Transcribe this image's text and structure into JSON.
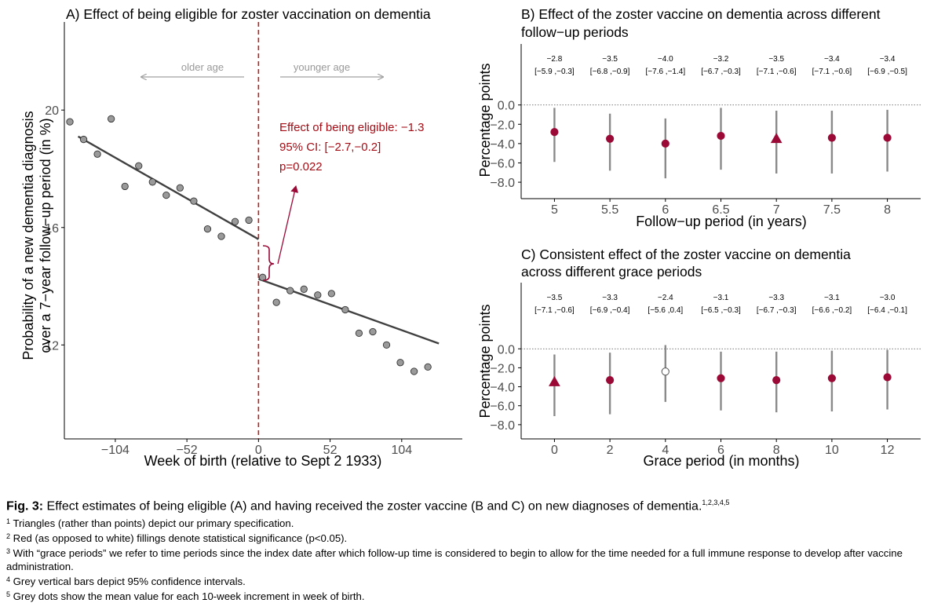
{
  "colors": {
    "red": "#9b0a36",
    "annot": "#a30d16",
    "grey_bar": "#8a8a8a",
    "line": "#404040",
    "dot_fill": "#9a9a9a",
    "guide": "#a0a0a0",
    "cutoff": "#b22222"
  },
  "panel_a": {
    "title": "A) Effect of being eligible for zoster vaccination on dementia",
    "xlabel": "Week of birth (relative to Sept 2 1933)",
    "ylabel_line1": "Probability of a new dementia diagnosis",
    "ylabel_line2": "over a 7−year follow−up period (in %)",
    "older_label": "older age",
    "younger_label": "younger age",
    "effect_line1": "Effect of being eligible: −1.3",
    "effect_line2": "95% CI: [−2.7,−0.2]",
    "effect_line3": "p=0.022"
  },
  "panel_b": {
    "title_line1": "B) Effect of the zoster vaccine on dementia across different",
    "title_line2": "follow−up periods",
    "xlabel": "Follow−up period (in years)",
    "ylabel": "Percentage points"
  },
  "panel_c": {
    "title_line1": "C) Consistent effect of the zoster vaccine on dementia",
    "title_line2": "across different grace periods",
    "xlabel": "Grace period (in months)",
    "ylabel": "Percentage points"
  },
  "chart_data": [
    {
      "type": "scatter",
      "x_ticks": [
        "−104",
        "−52",
        "0",
        "52",
        "104"
      ],
      "x_tick_values": [
        -104,
        -52,
        0,
        52,
        104
      ],
      "y_ticks": [
        "12",
        "16",
        "20"
      ],
      "y_tick_values": [
        12,
        16,
        20
      ],
      "xlim": [
        -141,
        148
      ],
      "ylim": [
        8.8,
        23
      ],
      "points": [
        {
          "x": -137,
          "y": 19.6
        },
        {
          "x": -127,
          "y": 19.0
        },
        {
          "x": -117,
          "y": 18.5
        },
        {
          "x": -107,
          "y": 19.7
        },
        {
          "x": -97,
          "y": 17.4
        },
        {
          "x": -87,
          "y": 18.1
        },
        {
          "x": -77,
          "y": 17.55
        },
        {
          "x": -67,
          "y": 17.1
        },
        {
          "x": -57,
          "y": 17.35
        },
        {
          "x": -47,
          "y": 16.9
        },
        {
          "x": -37,
          "y": 15.95
        },
        {
          "x": -27,
          "y": 15.7
        },
        {
          "x": -17,
          "y": 16.2
        },
        {
          "x": -7,
          "y": 16.25
        },
        {
          "x": 3,
          "y": 14.3
        },
        {
          "x": 13,
          "y": 13.45
        },
        {
          "x": 23,
          "y": 13.85
        },
        {
          "x": 33,
          "y": 13.9
        },
        {
          "x": 43,
          "y": 13.7
        },
        {
          "x": 53,
          "y": 13.75
        },
        {
          "x": 63,
          "y": 13.2
        },
        {
          "x": 73,
          "y": 12.4
        },
        {
          "x": 83,
          "y": 12.45
        },
        {
          "x": 93,
          "y": 12.0
        },
        {
          "x": 103,
          "y": 11.4
        },
        {
          "x": 113,
          "y": 11.1
        },
        {
          "x": 123,
          "y": 11.25
        }
      ],
      "fit_lines": [
        {
          "x": [
            -131,
            0
          ],
          "y": [
            19.1,
            15.6
          ]
        },
        {
          "x": [
            0,
            131
          ],
          "y": [
            14.25,
            12.05
          ]
        }
      ],
      "cutoff_x": 0
    },
    {
      "type": "scatter",
      "categories": [
        "5",
        "5.5",
        "6",
        "6.5",
        "7",
        "7.5",
        "8"
      ],
      "y_ticks": [
        "0.0",
        "−2.0",
        "−4.0",
        "−6.0",
        "−8.0"
      ],
      "y_tick_values": [
        0,
        -2,
        -4,
        -6,
        -8
      ],
      "ylim": [
        -9.7,
        2.9
      ],
      "estimate_labels": [
        "−2.8",
        "−3.5",
        "−4.0",
        "−3.2",
        "−3.5",
        "−3.4",
        "−3.4"
      ],
      "ci_labels": [
        "[−5.9 ,−0.3]",
        "[−6.8 ,−0.9]",
        "[−7.6 ,−1.4]",
        "[−6.7 ,−0.3]",
        "[−7.1 ,−0.6]",
        "[−7.1 ,−0.6]",
        "[−6.9 ,−0.5]"
      ],
      "estimates": [
        -2.8,
        -3.5,
        -4.0,
        -3.2,
        -3.5,
        -3.4,
        -3.4
      ],
      "ci_low": [
        -5.9,
        -6.8,
        -7.6,
        -6.7,
        -7.1,
        -7.1,
        -6.9
      ],
      "ci_high": [
        -0.3,
        -0.9,
        -1.4,
        -0.3,
        -0.6,
        -0.6,
        -0.5
      ],
      "marker": [
        "circle",
        "circle",
        "circle",
        "circle",
        "triangle",
        "circle",
        "circle"
      ],
      "significant": [
        true,
        true,
        true,
        true,
        true,
        true,
        true
      ]
    },
    {
      "type": "scatter",
      "categories": [
        "0",
        "2",
        "4",
        "6",
        "8",
        "10",
        "12"
      ],
      "y_ticks": [
        "0.0",
        "−2.0",
        "−4.0",
        "−6.0",
        "−8.0"
      ],
      "y_tick_values": [
        0,
        -2,
        -4,
        -6,
        -8
      ],
      "ylim": [
        -9.5,
        3.5
      ],
      "estimate_labels": [
        "−3.5",
        "−3.3",
        "−2.4",
        "−3.1",
        "−3.3",
        "−3.1",
        "−3.0"
      ],
      "ci_labels": [
        "[−7.1 ,−0.6]",
        "[−6.9 ,−0.4]",
        "[−5.6 ,0.4]",
        "[−6.5 ,−0.3]",
        "[−6.7 ,−0.3]",
        "[−6.6 ,−0.2]",
        "[−6.4 ,−0.1]"
      ],
      "estimates": [
        -3.5,
        -3.3,
        -2.4,
        -3.1,
        -3.3,
        -3.1,
        -3.0
      ],
      "ci_low": [
        -7.1,
        -6.9,
        -5.6,
        -6.5,
        -6.7,
        -6.6,
        -6.4
      ],
      "ci_high": [
        -0.6,
        -0.4,
        0.4,
        -0.3,
        -0.3,
        -0.2,
        -0.1
      ],
      "marker": [
        "triangle",
        "circle",
        "circle",
        "circle",
        "circle",
        "circle",
        "circle"
      ],
      "significant": [
        true,
        true,
        false,
        true,
        true,
        true,
        true
      ]
    }
  ],
  "caption": {
    "fig_label": "Fig. 3:",
    "main_text": " Effect estimates of being eligible (A) and having received the zoster vaccine (B and C) on new diagnoses of dementia.",
    "main_sup": "1,2,3,4,5",
    "footnotes": [
      {
        "num": "1",
        "text": " Triangles (rather than points) depict our primary specification."
      },
      {
        "num": "2",
        "text": " Red (as opposed to white) fillings denote statistical significance (p<0.05)."
      },
      {
        "num": "3",
        "text": " With “grace periods” we refer to time periods since the index date after which follow-up time is considered to begin to allow for the time needed for a full immune response to develop after vaccine administration."
      },
      {
        "num": "4",
        "text": " Grey vertical bars depict 95% confidence intervals."
      },
      {
        "num": "5",
        "text": " Grey dots show the mean value for each 10-week increment in week of birth."
      }
    ]
  }
}
